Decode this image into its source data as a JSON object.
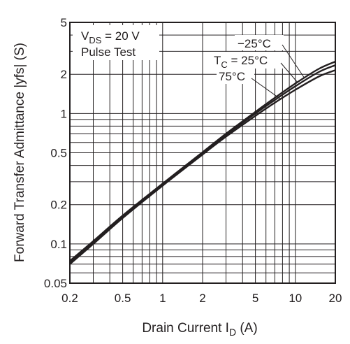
{
  "chart_data": {
    "type": "line",
    "xscale": "log",
    "yscale": "log",
    "xlim": [
      0.2,
      20
    ],
    "ylim": [
      0.05,
      5
    ],
    "grid": true,
    "xlabel": {
      "main": "Drain Current  I",
      "sub": "D",
      "unit": "  (A)"
    },
    "ylabel": "Forward Transfer Admittance  |yfs|  (S)",
    "x_ticks": [
      {
        "value": 0.2,
        "label": "0.2"
      },
      {
        "value": 0.5,
        "label": "0.5"
      },
      {
        "value": 1,
        "label": "1"
      },
      {
        "value": 2,
        "label": "2"
      },
      {
        "value": 5,
        "label": "5"
      },
      {
        "value": 10,
        "label": "10"
      },
      {
        "value": 20,
        "label": "20"
      }
    ],
    "y_ticks": [
      {
        "value": 0.05,
        "label": "0.05"
      },
      {
        "value": 0.1,
        "label": "0.1"
      },
      {
        "value": 0.2,
        "label": "0.2"
      },
      {
        "value": 0.5,
        "label": "0.5"
      },
      {
        "value": 1,
        "label": "1"
      },
      {
        "value": 2,
        "label": "2"
      },
      {
        "value": 5,
        "label": "5"
      }
    ],
    "conditions": {
      "vds": {
        "main": "V",
        "sub": "DS",
        "rest": " = 20 V"
      },
      "pulse": "Pulse Test"
    },
    "series": [
      {
        "name": "−25°C",
        "x": [
          0.2,
          0.3,
          0.5,
          1,
          2,
          3,
          5,
          7,
          10,
          15,
          20
        ],
        "y": [
          0.074,
          0.105,
          0.165,
          0.29,
          0.505,
          0.7,
          1.03,
          1.32,
          1.7,
          2.2,
          2.5
        ]
      },
      {
        "name": {
          "main": "T",
          "sub": "C",
          "rest": " = 25°C"
        },
        "x": [
          0.2,
          0.3,
          0.5,
          1,
          2,
          3,
          5,
          7,
          10,
          15,
          20
        ],
        "y": [
          0.072,
          0.102,
          0.162,
          0.285,
          0.495,
          0.685,
          1.0,
          1.27,
          1.62,
          2.08,
          2.35
        ]
      },
      {
        "name": "75°C",
        "x": [
          0.2,
          0.3,
          0.5,
          1,
          2,
          3,
          5,
          7,
          10,
          15,
          20
        ],
        "y": [
          0.07,
          0.1,
          0.158,
          0.28,
          0.485,
          0.665,
          0.96,
          1.21,
          1.52,
          1.92,
          2.15
        ]
      }
    ],
    "colors": {
      "ink": "#231f20",
      "grid": "#231f20"
    }
  }
}
